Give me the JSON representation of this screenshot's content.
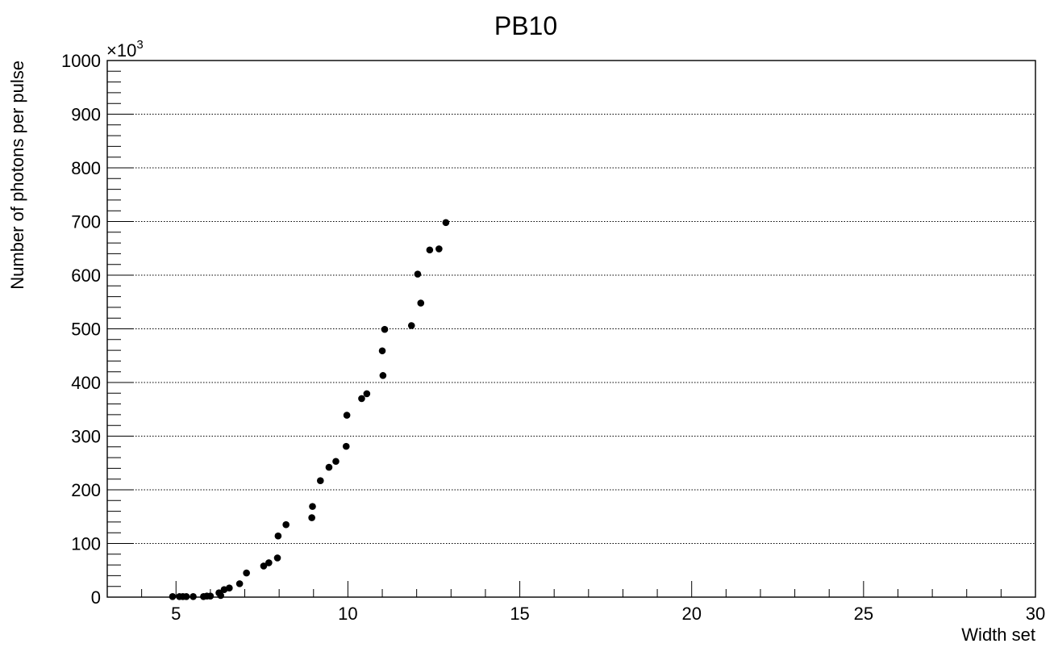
{
  "chart_data": {
    "type": "scatter",
    "title": "PB10",
    "xlabel": "Width set",
    "ylabel": "Number of photons per pulse",
    "y_multiplier_label": "×10",
    "y_multiplier_exponent": "3",
    "xlim": [
      3,
      30
    ],
    "ylim": [
      0,
      1000
    ],
    "x_ticks": [
      5,
      10,
      15,
      20,
      25,
      30
    ],
    "y_ticks": [
      0,
      100,
      200,
      300,
      400,
      500,
      600,
      700,
      800,
      900,
      1000
    ],
    "grid": {
      "x": false,
      "y": true
    },
    "marker_color": "#000000",
    "series": [
      {
        "x": [
          4.9,
          5.1,
          5.2,
          5.3,
          5.5,
          5.8,
          5.9,
          6.0,
          6.25,
          6.3,
          6.4,
          6.55,
          6.85,
          7.05,
          7.55,
          7.7,
          7.95,
          7.97,
          8.2,
          8.95,
          8.97,
          9.2,
          9.45,
          9.65,
          9.95,
          9.97,
          10.4,
          10.55,
          11.0,
          11.02,
          11.07,
          11.85,
          12.03,
          12.12,
          12.38,
          12.65,
          12.85
        ],
        "y": [
          1,
          1,
          1,
          1,
          1,
          1,
          2,
          2,
          8,
          3,
          14,
          17,
          25,
          45,
          58,
          64,
          73,
          114,
          135,
          148,
          169,
          217,
          242,
          253,
          281,
          339,
          370,
          379,
          459,
          413,
          499,
          506,
          602,
          548,
          647,
          649,
          698
        ]
      }
    ]
  }
}
